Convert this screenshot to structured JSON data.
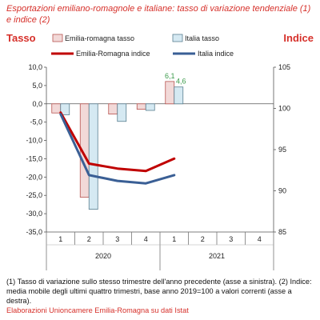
{
  "title": "Esportazioni emiliano-romagnole e italiane: tasso di variazione tendenziale (1) e indice (2)",
  "left_axis_title": "Tasso",
  "right_axis_title": "Indice",
  "notes": "(1) Tasso di variazione sullo stesso trimestre dell'anno precedente (asse a sinistra). (2) Indice: media mobile degli ultimi quattro trimestri, base anno 2019=100 a valori correnti (asse a destra).",
  "source": "Elaborazioni Unioncamere Emilia-Romagna su dati Istat",
  "colors": {
    "emilia_bar_fill": "#f2d9d8",
    "emilia_bar_stroke": "#b85450",
    "italia_bar_fill": "#d5e9f2",
    "italia_bar_stroke": "#5a7f90",
    "emilia_line": "#c00000",
    "italia_line": "#3a5f95",
    "label_green": "#3a9a4a",
    "axis_title_red": "#d6302a"
  },
  "chart_data": {
    "type": "bar",
    "categories": [
      "1",
      "2",
      "3",
      "4",
      "1",
      "2",
      "3",
      "4"
    ],
    "years": [
      {
        "label": "2020",
        "quarters": 4
      },
      {
        "label": "2021",
        "quarters": 4
      }
    ],
    "ylim_left": [
      -35,
      10
    ],
    "yticks_left": [
      "10,0",
      "5,0",
      "0,0",
      "-5,0",
      "-10,0",
      "-15,0",
      "-20,0",
      "-25,0",
      "-30,0",
      "-35,0"
    ],
    "ylim_right": [
      85,
      105
    ],
    "yticks_right": [
      "105",
      "100",
      "95",
      "90",
      "85"
    ],
    "grid": false,
    "legend_position": "top",
    "bar_series": [
      {
        "name": "Emilia-romagna tasso",
        "axis": "left",
        "values": [
          -2.5,
          -25.5,
          -2.8,
          -1.5,
          6.1,
          null,
          null,
          null
        ]
      },
      {
        "name": "Italia tasso",
        "axis": "left",
        "values": [
          -3.0,
          -28.8,
          -4.8,
          -1.8,
          4.6,
          null,
          null,
          null
        ]
      }
    ],
    "line_series": [
      {
        "name": "Emilia-Romagna indice",
        "axis": "right",
        "values": [
          99.5,
          93.3,
          92.7,
          92.4,
          93.9,
          null,
          null,
          null
        ]
      },
      {
        "name": "Italia indice",
        "axis": "right",
        "values": [
          99.3,
          91.9,
          91.2,
          90.9,
          91.9,
          null,
          null,
          null
        ]
      }
    ],
    "data_labels": [
      {
        "series": "Emilia-romagna tasso",
        "index": 4,
        "text": "6,1"
      },
      {
        "series": "Italia tasso",
        "index": 4,
        "text": "4,6"
      }
    ]
  }
}
